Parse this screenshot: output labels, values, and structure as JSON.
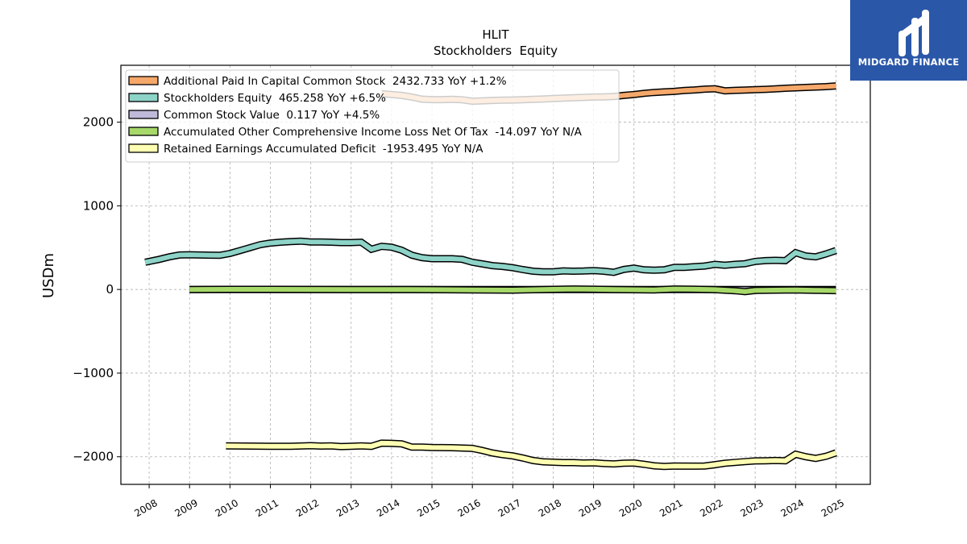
{
  "logo": {
    "text": "MIDGARD FINANCE",
    "color": "#2a57a8"
  },
  "chart_data": {
    "type": "line",
    "title": "HLIT",
    "subtitle": "Stockholders  Equity",
    "ylabel": "USDm",
    "xlabel": "",
    "xlim": [
      2007.3,
      2025.85
    ],
    "ylim": [
      -2330,
      2680
    ],
    "yticks": [
      2000,
      1000,
      0,
      -1000,
      -2000
    ],
    "ytick_labels": [
      "2000",
      "1000",
      "0",
      "−1000",
      "−2000"
    ],
    "xticks": [
      2008,
      2009,
      2010,
      2011,
      2012,
      2013,
      2014,
      2015,
      2016,
      2017,
      2018,
      2019,
      2020,
      2021,
      2022,
      2023,
      2024,
      2025
    ],
    "grid": true,
    "legend_position": "top-left",
    "series": [
      {
        "name": "Additional Paid In Capital Common Stock  2432.733 YoY +1.2%",
        "color": "#f5a86a",
        "x": [
          2013.75,
          2014.0,
          2014.25,
          2014.5,
          2014.75,
          2015.0,
          2015.25,
          2015.5,
          2015.75,
          2016.0,
          2016.25,
          2016.5,
          2016.75,
          2017.0,
          2017.25,
          2017.5,
          2017.75,
          2018.0,
          2018.25,
          2018.5,
          2018.75,
          2019.0,
          2019.25,
          2019.5,
          2019.75,
          2020.0,
          2020.25,
          2020.5,
          2020.75,
          2021.0,
          2021.25,
          2021.5,
          2021.75,
          2022.0,
          2022.25,
          2022.5,
          2022.75,
          2023.0,
          2023.25,
          2023.5,
          2023.75,
          2024.0,
          2024.25,
          2024.5,
          2024.75,
          2025.0
        ],
        "values": [
          2340,
          2330,
          2320,
          2300,
          2275,
          2270,
          2270,
          2272,
          2268,
          2250,
          2255,
          2260,
          2263,
          2265,
          2268,
          2272,
          2276,
          2282,
          2288,
          2292,
          2296,
          2300,
          2302,
          2306,
          2320,
          2330,
          2345,
          2355,
          2362,
          2368,
          2378,
          2385,
          2395,
          2400,
          2375,
          2380,
          2384,
          2388,
          2392,
          2398,
          2405,
          2410,
          2415,
          2420,
          2425,
          2433
        ]
      },
      {
        "name": "Stockholders Equity  465.258 YoY +6.5%",
        "color": "#8dd3c7",
        "x": [
          2007.9,
          2008.25,
          2008.5,
          2008.75,
          2009.0,
          2009.25,
          2009.5,
          2009.75,
          2010.0,
          2010.25,
          2010.5,
          2010.75,
          2011.0,
          2011.25,
          2011.5,
          2011.75,
          2012.0,
          2012.25,
          2012.5,
          2012.75,
          2013.0,
          2013.25,
          2013.5,
          2013.75,
          2014.0,
          2014.25,
          2014.5,
          2014.75,
          2015.0,
          2015.25,
          2015.5,
          2015.75,
          2016.0,
          2016.25,
          2016.5,
          2016.75,
          2017.0,
          2017.25,
          2017.5,
          2017.75,
          2018.0,
          2018.25,
          2018.5,
          2018.75,
          2019.0,
          2019.25,
          2019.5,
          2019.75,
          2020.0,
          2020.25,
          2020.5,
          2020.75,
          2021.0,
          2021.25,
          2021.5,
          2021.75,
          2022.0,
          2022.25,
          2022.5,
          2022.75,
          2023.0,
          2023.25,
          2023.5,
          2023.75,
          2024.0,
          2024.25,
          2024.5,
          2024.75,
          2025.0
        ],
        "values": [
          325,
          360,
          390,
          412,
          415,
          412,
          410,
          408,
          430,
          465,
          500,
          535,
          555,
          565,
          572,
          578,
          568,
          568,
          565,
          560,
          560,
          565,
          480,
          515,
          505,
          470,
          410,
          380,
          368,
          368,
          368,
          360,
          325,
          305,
          285,
          275,
          260,
          238,
          218,
          212,
          212,
          222,
          218,
          220,
          225,
          218,
          205,
          240,
          255,
          235,
          230,
          235,
          265,
          265,
          272,
          280,
          300,
          290,
          300,
          308,
          335,
          345,
          348,
          345,
          440,
          400,
          390,
          425,
          465
        ]
      },
      {
        "name": "Common Stock Value  0.117 YoY +4.5%",
        "color": "#bebada",
        "x": [
          2009.0,
          2012.0,
          2015.0,
          2018.0,
          2021.0,
          2024.0,
          2025.0
        ],
        "values": [
          0.1,
          0.1,
          0.1,
          0.11,
          0.11,
          0.11,
          0.117
        ]
      },
      {
        "name": "Accumulated Other Comprehensive Income Loss Net Of Tax  -14.097 YoY N/A",
        "color": "#a6d96a",
        "x": [
          2009.0,
          2010.0,
          2011.0,
          2012.0,
          2013.0,
          2014.0,
          2015.0,
          2016.0,
          2017.0,
          2018.0,
          2018.5,
          2019.0,
          2019.5,
          2020.0,
          2020.5,
          2021.0,
          2021.5,
          2022.0,
          2022.5,
          2022.75,
          2023.0,
          2023.5,
          2024.0,
          2024.5,
          2025.0
        ],
        "values": [
          0,
          2,
          2,
          1,
          0,
          0,
          -2,
          -5,
          -8,
          2,
          5,
          3,
          0,
          -3,
          -5,
          5,
          3,
          -2,
          -15,
          -25,
          -12,
          -8,
          -5,
          -10,
          -14
        ]
      },
      {
        "name": "Retained Earnings Accumulated Deficit  -1953.495 YoY N/A",
        "color": "#ffffb3",
        "x": [
          2009.9,
          2010.5,
          2011.0,
          2011.5,
          2012.0,
          2012.25,
          2012.5,
          2012.75,
          2013.0,
          2013.25,
          2013.5,
          2013.75,
          2014.0,
          2014.25,
          2014.5,
          2014.75,
          2015.0,
          2015.5,
          2016.0,
          2016.25,
          2016.5,
          2016.75,
          2017.0,
          2017.25,
          2017.5,
          2017.75,
          2018.0,
          2018.25,
          2018.5,
          2018.75,
          2019.0,
          2019.25,
          2019.5,
          2019.75,
          2020.0,
          2020.25,
          2020.5,
          2020.75,
          2021.0,
          2021.5,
          2021.75,
          2022.0,
          2022.25,
          2022.5,
          2022.75,
          2023.0,
          2023.25,
          2023.5,
          2023.75,
          2024.0,
          2024.25,
          2024.5,
          2024.75,
          2025.0
        ],
        "values": [
          -1870,
          -1872,
          -1875,
          -1875,
          -1868,
          -1872,
          -1870,
          -1878,
          -1875,
          -1870,
          -1875,
          -1838,
          -1840,
          -1845,
          -1885,
          -1885,
          -1890,
          -1892,
          -1900,
          -1925,
          -1955,
          -1975,
          -1990,
          -2015,
          -2045,
          -2060,
          -2065,
          -2070,
          -2070,
          -2075,
          -2072,
          -2080,
          -2085,
          -2078,
          -2075,
          -2090,
          -2108,
          -2115,
          -2110,
          -2112,
          -2110,
          -2095,
          -2078,
          -2068,
          -2058,
          -2050,
          -2048,
          -2045,
          -2048,
          -1970,
          -2000,
          -2020,
          -1995,
          -1953
        ]
      }
    ]
  }
}
